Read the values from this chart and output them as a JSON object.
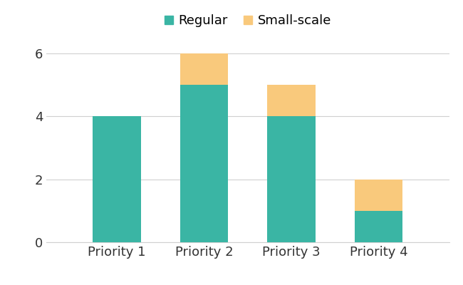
{
  "categories": [
    "Priority 1",
    "Priority 2",
    "Priority 3",
    "Priority 4"
  ],
  "regular_values": [
    4,
    5,
    4,
    1
  ],
  "small_scale_values": [
    0,
    1,
    1,
    1
  ],
  "regular_color": "#3ab5a4",
  "small_scale_color": "#f9c97c",
  "ylim": [
    0,
    6.6
  ],
  "yticks": [
    0,
    2,
    4,
    6
  ],
  "legend_labels": [
    "Regular",
    "Small-scale"
  ],
  "bar_width": 0.55,
  "background_color": "#ffffff",
  "grid_color": "#d0d0d0",
  "text_color": "#333333",
  "label_fontsize": 13,
  "legend_fontsize": 13,
  "tick_fontsize": 13
}
